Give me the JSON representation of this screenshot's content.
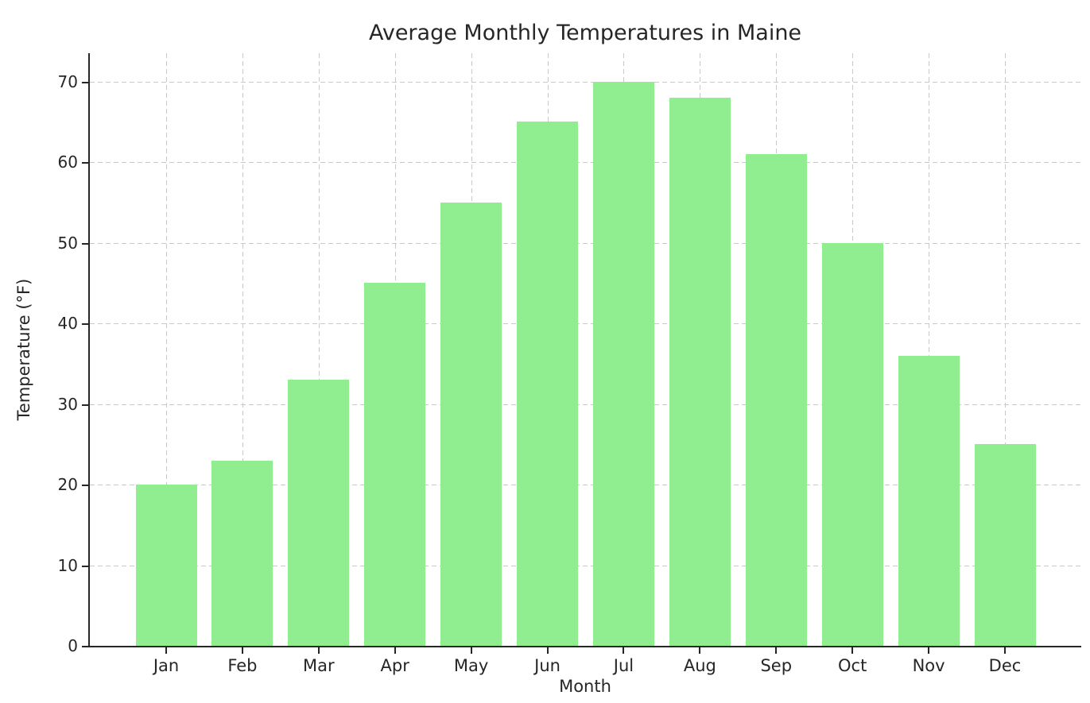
{
  "chart_data": {
    "type": "bar",
    "title": "Average Monthly Temperatures in Maine",
    "xlabel": "Month",
    "ylabel": "Temperature (°F)",
    "categories": [
      "Jan",
      "Feb",
      "Mar",
      "Apr",
      "May",
      "Jun",
      "Jul",
      "Aug",
      "Sep",
      "Oct",
      "Nov",
      "Dec"
    ],
    "values": [
      20,
      23,
      33,
      45,
      55,
      65,
      70,
      68,
      61,
      50,
      36,
      25
    ],
    "yticks": [
      0,
      10,
      20,
      30,
      40,
      50,
      60,
      70
    ],
    "ylim": [
      0,
      73.5
    ],
    "bar_color": "#90ee90",
    "grid": {
      "visible": true,
      "style": "dashed",
      "color": "#c9c9c9",
      "axes": "both"
    },
    "background": "#ffffff",
    "legend": "none"
  }
}
